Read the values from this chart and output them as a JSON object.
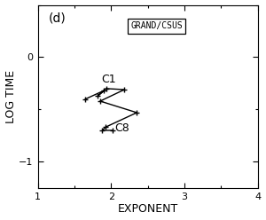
{
  "title_label": "(d)",
  "legend_label": "GRAND/CSUS",
  "xlabel": "EXPONENT",
  "ylabel": "LOG TIME",
  "xlim": [
    1,
    4
  ],
  "ylim": [
    -1.25,
    0.5
  ],
  "xticks": [
    1,
    2,
    3,
    4
  ],
  "yticks": [
    -1,
    0
  ],
  "c1_label": "C1",
  "c8_label": "C8",
  "line_x": [
    1.65,
    1.9,
    1.82,
    1.93,
    2.18,
    1.85,
    2.35,
    1.92,
    1.88,
    2.02
  ],
  "line_y": [
    -0.4,
    -0.32,
    -0.37,
    -0.3,
    -0.31,
    -0.42,
    -0.53,
    -0.67,
    -0.7,
    -0.7
  ],
  "bg_color": "#ffffff",
  "line_color": "#000000",
  "marker_color": "#000000",
  "fig_bg": "#c8c8c8"
}
